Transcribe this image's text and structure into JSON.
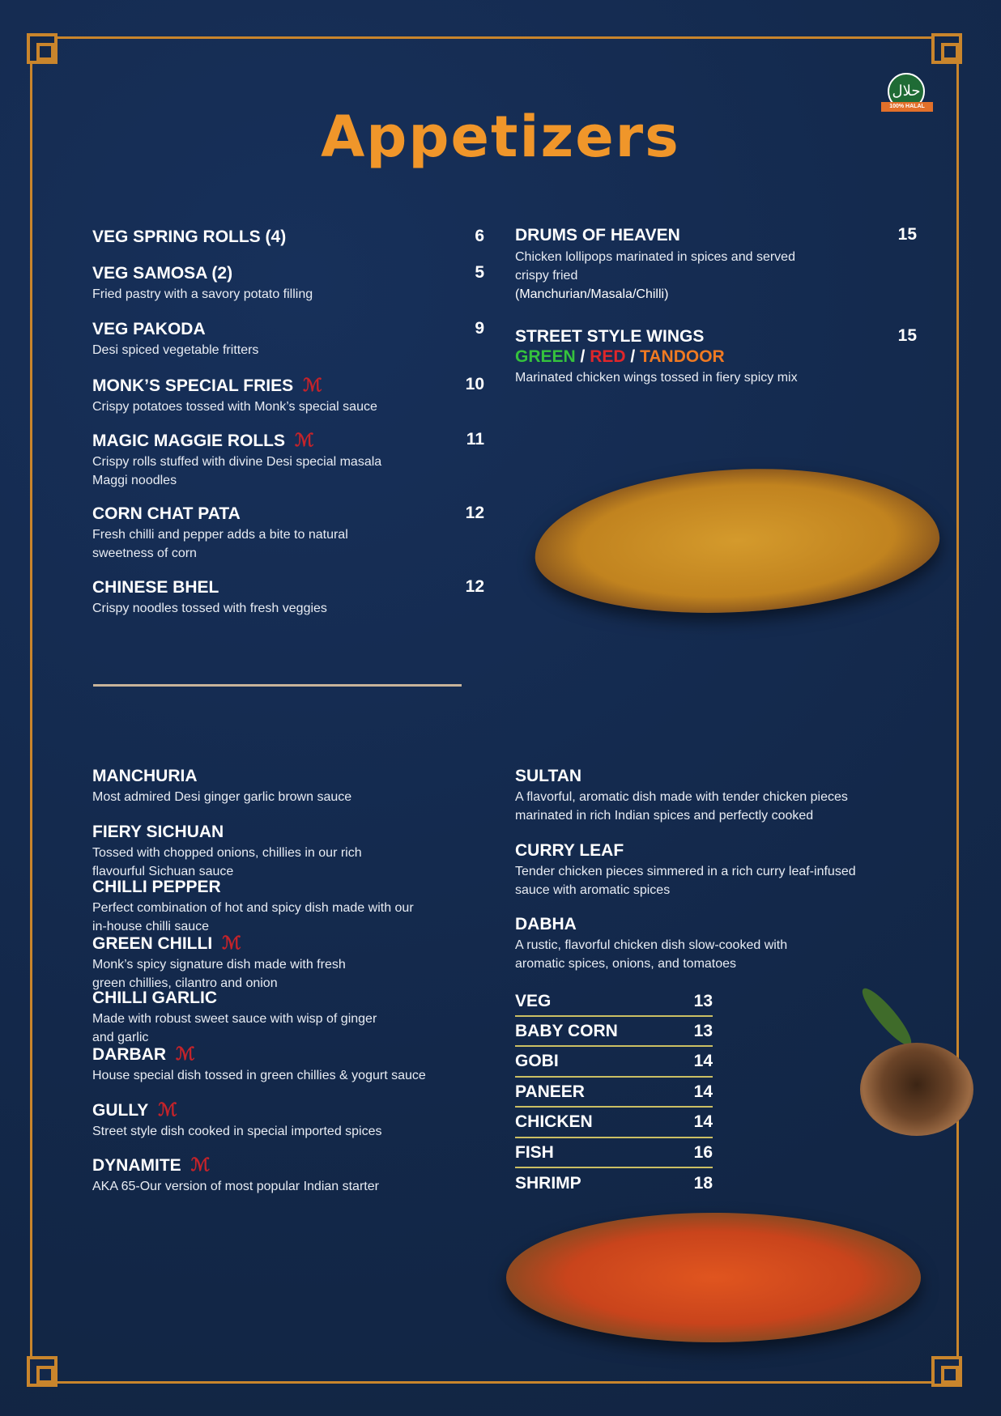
{
  "title": "Appetizers",
  "halal_badge": {
    "arabic": "حلال",
    "label": "100% HALAL"
  },
  "colors": {
    "background": "#13284a",
    "frame": "#c9852c",
    "title": "#f0962a",
    "green": "#35c23d",
    "red": "#e0262a",
    "orange": "#f07a22"
  },
  "left_items": [
    {
      "name": "VEG SPRING ROLLS (4)",
      "desc": "",
      "price": "6",
      "monk": false
    },
    {
      "name": "VEG SAMOSA (2)",
      "desc": "Fried pastry with a savory potato filling",
      "price": "5",
      "monk": false
    },
    {
      "name": "VEG PAKODA",
      "desc": "Desi spiced vegetable fritters",
      "price": "9",
      "monk": false
    },
    {
      "name": "MONK’S SPECIAL FRIES",
      "desc": "Crispy potatoes tossed with Monk’s special sauce",
      "price": "10",
      "monk": true
    },
    {
      "name": "MAGIC MAGGIE ROLLS",
      "desc": "Crispy rolls stuffed with divine Desi special masala\nMaggi noodles",
      "price": "11",
      "monk": true
    },
    {
      "name": "CORN CHAT PATA",
      "desc": "Fresh chilli and pepper adds a bite to natural\nsweetness of corn",
      "price": "12",
      "monk": false
    },
    {
      "name": "CHINESE BHEL",
      "desc": "Crispy noodles tossed with fresh veggies",
      "price": "12",
      "monk": false
    }
  ],
  "right_items": {
    "drums": {
      "name": "DRUMS OF HEAVEN",
      "desc": "Chicken lollipops marinated in spices and served\ncrispy fried",
      "options": "(Manchurian/Masala/Chilli)",
      "price": "15"
    },
    "wings": {
      "name": "STREET STYLE WINGS",
      "variants": [
        "GREEN",
        "RED",
        "TANDOOR"
      ],
      "separator": "/",
      "desc": "Marinated chicken wings tossed in fiery spicy mix",
      "price": "15"
    }
  },
  "sauces_left": [
    {
      "name": "MANCHURIA",
      "desc": "Most admired Desi ginger garlic brown sauce",
      "monk": false
    },
    {
      "name": "FIERY SICHUAN",
      "desc": "Tossed with chopped onions, chillies in our rich\nflavourful Sichuan sauce",
      "monk": false
    },
    {
      "name": "CHILLI PEPPER",
      "desc": "Perfect combination of hot and spicy dish made with our\nin-house chilli sauce",
      "monk": false
    },
    {
      "name": "GREEN CHILLI",
      "desc": "Monk’s spicy signature dish made with fresh\ngreen chillies, cilantro and onion",
      "monk": true
    },
    {
      "name": "CHILLI GARLIC",
      "desc": "Made with robust sweet sauce with wisp of ginger\nand garlic",
      "monk": false
    },
    {
      "name": "DARBAR",
      "desc": "House special dish tossed in green chillies & yogurt sauce",
      "monk": true
    },
    {
      "name": "GULLY",
      "desc": "Street style dish cooked in special imported spices",
      "monk": true
    },
    {
      "name": "DYNAMITE",
      "desc": "AKA 65-Our version of most popular Indian starter",
      "monk": true
    }
  ],
  "sauces_right": [
    {
      "name": "SULTAN",
      "desc": "A flavorful, aromatic dish made with tender chicken pieces\nmarinated in rich Indian spices and perfectly cooked"
    },
    {
      "name": "CURRY LEAF",
      "desc": "Tender chicken pieces simmered in a rich curry leaf-infused\nsauce with aromatic spices"
    },
    {
      "name": "DABHA",
      "desc": "A rustic, flavorful chicken dish slow-cooked with\naromatic spices, onions, and tomatoes"
    }
  ],
  "proteins": [
    {
      "name": "VEG",
      "price": "13"
    },
    {
      "name": "BABY CORN",
      "price": "13"
    },
    {
      "name": "GOBI",
      "price": "14"
    },
    {
      "name": "PANEER",
      "price": "14"
    },
    {
      "name": "CHICKEN",
      "price": "14"
    },
    {
      "name": "FISH",
      "price": "16"
    },
    {
      "name": "SHRIMP",
      "price": "18"
    }
  ]
}
